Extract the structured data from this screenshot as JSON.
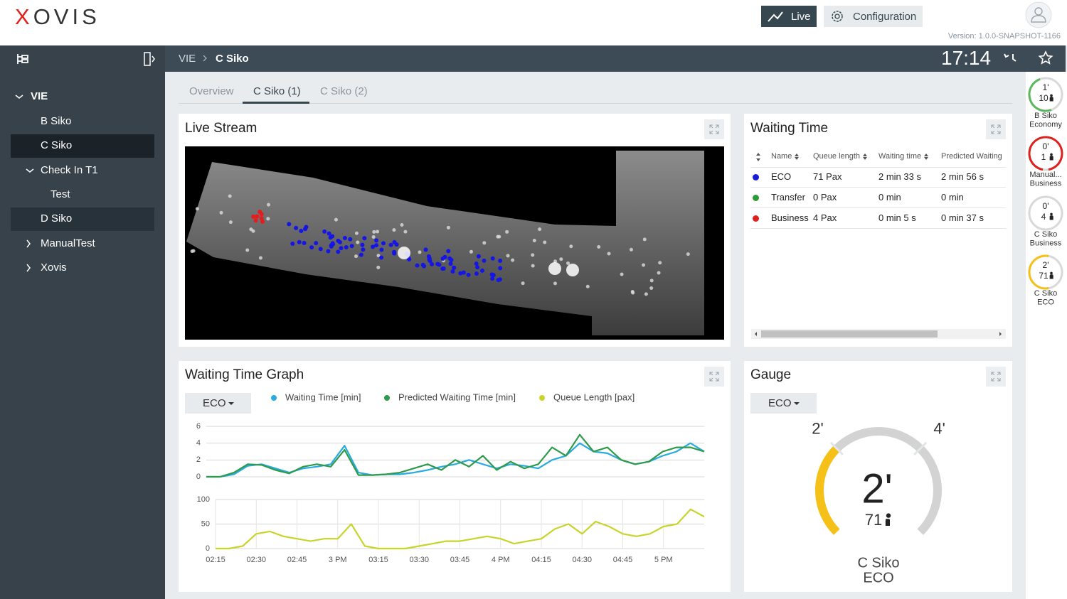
{
  "header": {
    "logo": "XOVIS",
    "nav": {
      "live": "Live",
      "configuration": "Configuration"
    },
    "version": "Version: 1.0.0-SNAPSHOT-1166"
  },
  "sidebar": {
    "tree": [
      "VIE",
      "B Siko",
      "C Siko",
      "Check In T1",
      "Test",
      "D Siko",
      "ManualTest",
      "Xovis"
    ]
  },
  "breadcrumb": [
    "VIE",
    "C Siko"
  ],
  "clock": "17:14",
  "tabs": [
    "Overview",
    "C Siko (1)",
    "C Siko (2)"
  ],
  "panels": {
    "live_stream": {
      "title": "Live Stream"
    },
    "waiting_time": {
      "title": "Waiting Time",
      "table": {
        "headers": [
          "Name",
          "Queue length",
          "Waiting time",
          "Predicted Waiting"
        ],
        "rows": [
          [
            "ECO",
            "71 Pax",
            "2 min 33 s",
            "2 min 56 s"
          ],
          [
            "Transfer",
            "0 Pax",
            "0 min",
            "0 min"
          ],
          [
            "Business",
            "4 Pax",
            "0 min 5 s",
            "0 min 37 s"
          ]
        ],
        "row_colors": [
          "#1a1adb",
          "#2e9a3a",
          "#e0201c"
        ]
      }
    },
    "graph": {
      "title": "Waiting Time Graph",
      "dropdown": "ECO"
    },
    "gauge": {
      "title": "Gauge",
      "dropdown": "ECO"
    }
  },
  "rail": [
    {
      "time": "1'",
      "count": 10,
      "name": [
        "B Siko",
        "Economy"
      ]
    },
    {
      "time": "0'",
      "count": 1,
      "name": [
        "Manual...",
        "Business"
      ]
    },
    {
      "time": "0'",
      "count": 4,
      "name": [
        "C Siko",
        "Business"
      ]
    },
    {
      "time": "2'",
      "count": 71,
      "name": [
        "C Siko",
        "ECO"
      ]
    }
  ],
  "chart_data": [
    {
      "type": "line",
      "grid": true,
      "x": [
        "02:15",
        "02:20",
        "02:25",
        "02:30",
        "02:35",
        "02:40",
        "02:45",
        "02:50",
        "02:55",
        "03:00",
        "03:05",
        "03:10",
        "03:15",
        "03:20",
        "03:25",
        "03:30",
        "03:35",
        "03:40",
        "03:45",
        "03:50",
        "03:55",
        "04:00",
        "04:05",
        "04:10",
        "04:15",
        "04:20",
        "04:25",
        "04:30",
        "04:35",
        "04:40",
        "04:45",
        "04:50",
        "04:55",
        "05:00",
        "05:05",
        "05:10",
        "05:15"
      ],
      "xlim": [
        "02:15",
        "05:15"
      ],
      "ylim": [
        0,
        6
      ],
      "yticks": [
        0,
        2,
        4,
        6
      ],
      "series": [
        {
          "name": "Waiting Time [min]",
          "color": "#29abe2",
          "values": [
            0,
            0,
            0.3,
            1.3,
            1.5,
            1.0,
            0.5,
            1.0,
            1.2,
            1.5,
            3.7,
            0.5,
            0.2,
            0.3,
            0.3,
            0.5,
            0.8,
            1.2,
            1.5,
            2.0,
            1.5,
            1.0,
            1.5,
            1.3,
            1.0,
            2.0,
            2.5,
            4.0,
            3.0,
            2.8,
            2.0,
            1.5,
            1.8,
            2.5,
            3.0,
            4.0,
            3.0
          ]
        },
        {
          "name": "Predicted Waiting Time [min]",
          "color": "#2e9a4a",
          "values": [
            0,
            0,
            0.5,
            1.5,
            1.4,
            0.8,
            0.4,
            1.2,
            1.5,
            1.2,
            3.2,
            0.2,
            0.2,
            0.3,
            0.5,
            1.0,
            1.5,
            0.8,
            2.0,
            1.2,
            2.5,
            0.8,
            1.8,
            1.0,
            1.5,
            3.5,
            2.5,
            5.0,
            3.0,
            3.5,
            2.0,
            1.5,
            1.8,
            3.0,
            3.5,
            3.5,
            3.0
          ]
        }
      ]
    },
    {
      "type": "line",
      "grid": true,
      "x": [
        "02:15",
        "02:20",
        "02:25",
        "02:30",
        "02:35",
        "02:40",
        "02:45",
        "02:50",
        "02:55",
        "03:00",
        "03:05",
        "03:10",
        "03:15",
        "03:20",
        "03:25",
        "03:30",
        "03:35",
        "03:40",
        "03:45",
        "03:50",
        "03:55",
        "04:00",
        "04:05",
        "04:10",
        "04:15",
        "04:20",
        "04:25",
        "04:30",
        "04:35",
        "04:40",
        "04:45",
        "04:50",
        "04:55",
        "05:00",
        "05:05",
        "05:10",
        "05:15"
      ],
      "xlim": [
        "02:15",
        "05:15"
      ],
      "xticks": [
        "02:15",
        "02:30",
        "02:45",
        {
          "value": "03:00",
          "label": "3 PM"
        },
        "03:15",
        "03:30",
        "03:45",
        {
          "value": "04:00",
          "label": "4 PM"
        },
        "04:15",
        "04:30",
        "04:45",
        {
          "value": "05:00",
          "label": "5 PM"
        }
      ],
      "ylim": [
        0,
        100
      ],
      "yticks": [
        0,
        50,
        100
      ],
      "series": [
        {
          "name": "Queue Length [pax]",
          "color": "#c8d42a",
          "values": [
            0,
            0,
            5,
            30,
            35,
            25,
            20,
            15,
            20,
            20,
            50,
            5,
            0,
            0,
            0,
            5,
            10,
            15,
            15,
            20,
            25,
            20,
            10,
            15,
            20,
            40,
            50,
            30,
            55,
            45,
            30,
            25,
            30,
            45,
            50,
            80,
            65
          ]
        }
      ]
    },
    {
      "type": "gauge",
      "value": 2,
      "value_label": "2'",
      "count": 71,
      "ylim": [
        0,
        6
      ],
      "yticks": [
        {
          "value": 2,
          "label": "2'"
        },
        {
          "value": 4,
          "label": "4'"
        }
      ],
      "labels": [
        "C Siko",
        "ECO"
      ],
      "color": "#f5c118"
    }
  ]
}
